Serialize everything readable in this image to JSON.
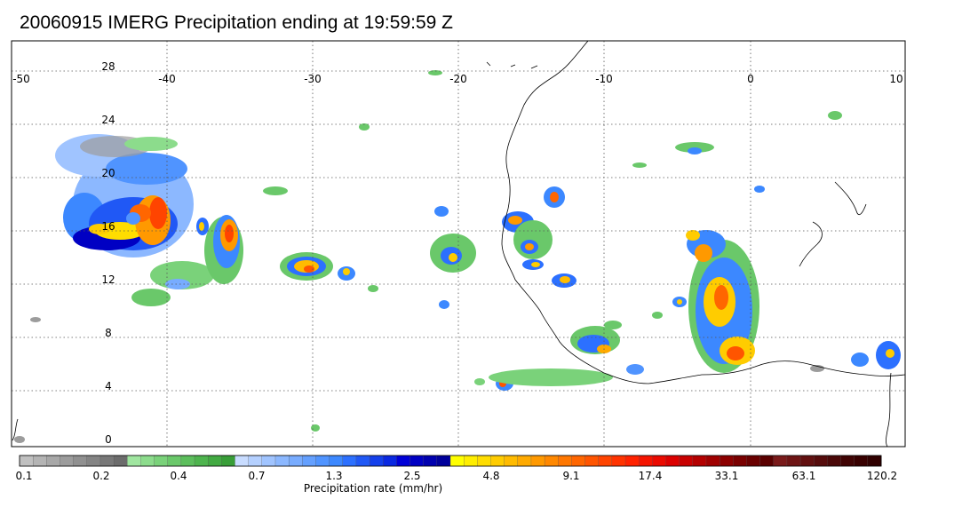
{
  "title": "20060915 IMERG Precipitation ending at 19:59:59 Z",
  "map": {
    "lon_labels": [
      "-50",
      "-40",
      "-30",
      "-20",
      "-10",
      "0",
      "10"
    ],
    "lat_labels": [
      "28",
      "24",
      "20",
      "16",
      "12",
      "8",
      "4",
      "0"
    ],
    "grid": "dotted"
  },
  "colorbar": {
    "title": "Precipitation rate (mm/hr)",
    "tick_labels": [
      "0.1",
      "0.2",
      "0.4",
      "0.7",
      "1.3",
      "2.5",
      "4.8",
      "9.1",
      "17.4",
      "33.1",
      "63.1",
      "120.2"
    ],
    "colors": [
      "#c0c0c0",
      "#b4b4b4",
      "#a8a8a8",
      "#9c9c9c",
      "#909090",
      "#848484",
      "#787878",
      "#6c6c6c",
      "#a0e6a0",
      "#8cdc8c",
      "#7ad27a",
      "#6ac86a",
      "#5cbe5c",
      "#4eb44e",
      "#42aa42",
      "#389e38",
      "#c8dcff",
      "#b4d0ff",
      "#a0c4ff",
      "#8cb8ff",
      "#78acff",
      "#64a0ff",
      "#5094ff",
      "#3c88ff",
      "#2c70ff",
      "#2058f5",
      "#1440eb",
      "#0a28e1",
      "#0000d7",
      "#0000c3",
      "#0000af",
      "#00009b",
      "#ffff00",
      "#ffee00",
      "#ffdd00",
      "#ffcc00",
      "#ffbb00",
      "#ffaa00",
      "#ff9900",
      "#ff8800",
      "#ff7700",
      "#ff6600",
      "#ff5500",
      "#ff4400",
      "#ff3300",
      "#ff2200",
      "#f51400",
      "#eb0a00",
      "#dc0000",
      "#c80000",
      "#b40000",
      "#a00000",
      "#8c0000",
      "#7a0000",
      "#6a0000",
      "#5a0000",
      "#7a1a1a",
      "#6e1414",
      "#621010",
      "#560c0c",
      "#4a0808",
      "#400404",
      "#380000",
      "#300000"
    ]
  }
}
